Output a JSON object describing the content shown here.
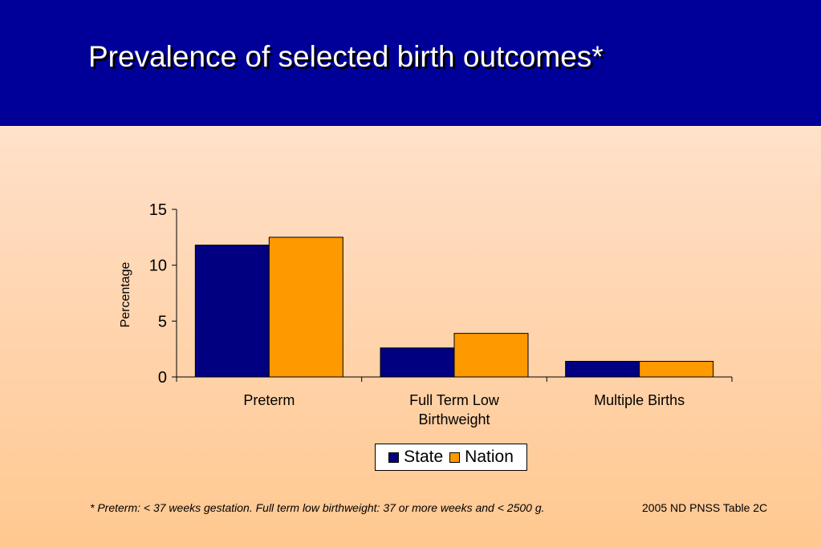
{
  "slide": {
    "title": "Prevalence of selected birth outcomes*",
    "footnote": "*  Preterm: < 37 weeks gestation.  Full term low birthweight:  37 or more weeks and < 2500 g.",
    "source": "2005 ND PNSS Table 2C"
  },
  "colors": {
    "header_bg": "#000099",
    "state": "#000080",
    "nation": "#ff9900"
  },
  "chart_data": {
    "type": "bar",
    "title": "",
    "xlabel": "",
    "ylabel": "Percentage",
    "ylim": [
      0,
      15
    ],
    "yticks": [
      0,
      5,
      10,
      15
    ],
    "categories": [
      [
        "Preterm"
      ],
      [
        "Full Term Low",
        "Birthweight"
      ],
      [
        "Multiple Births"
      ]
    ],
    "series": [
      {
        "name": "State",
        "color": "#000080",
        "values": [
          11.8,
          2.6,
          1.4
        ]
      },
      {
        "name": "Nation",
        "color": "#ff9900",
        "values": [
          12.5,
          3.9,
          1.4
        ]
      }
    ],
    "grid": false,
    "legend": "bottom"
  }
}
